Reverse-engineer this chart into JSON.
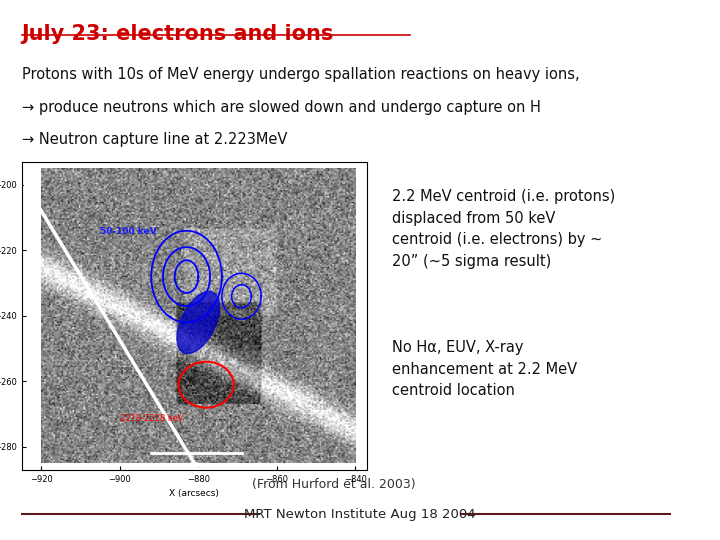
{
  "title": "July 23: electrons and ions",
  "title_color": "#cc0000",
  "bg_color": "#ffffff",
  "line1": "Protons with 10s of MeV energy undergo spallation reactions on heavy ions,",
  "line2": "produce neutrons which are slowed down and undergo capture on H",
  "line3": "Neutron capture line at 2.223MeV",
  "right_text1": "2.2 MeV centroid (i.e. protons)\ndisplaced from 50 keV\ncentroid (i.e. electrons) by ~\n20” (~5 sigma result)",
  "right_text2": "No Hα, EUV, X-ray\nenhancement at 2.2 MeV\ncentroid location",
  "caption": "(From Hurford et al. 2003)",
  "footer": "MRT Newton Institute Aug 18 2004",
  "footer_color": "#5c1a1a",
  "arrow_color": "#111111",
  "body_color": "#111111"
}
